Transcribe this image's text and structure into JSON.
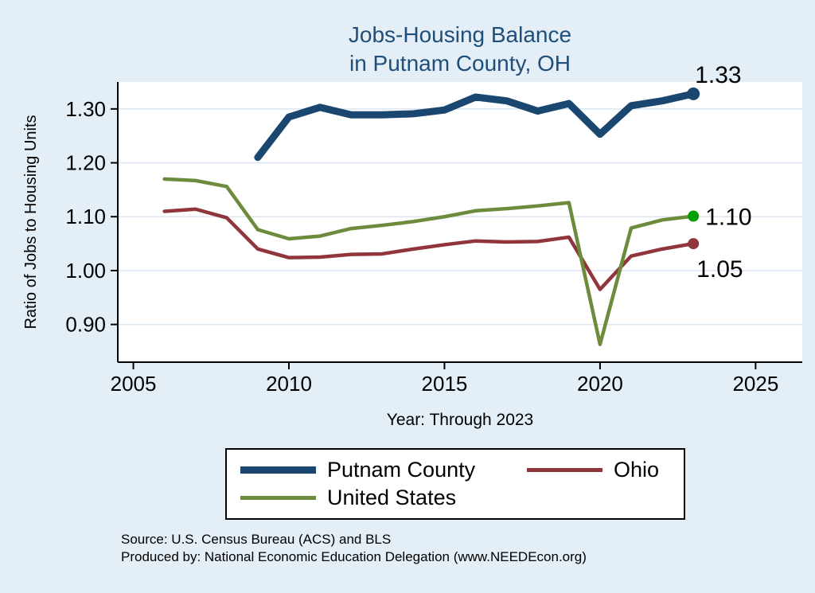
{
  "title_block": {
    "line1": "Jobs-Housing Balance",
    "line2": "in Putnam County, OH"
  },
  "colors": {
    "title": "#1f4e79",
    "background": "#e4eef7",
    "plot_background": "#ffffff",
    "gridline": "#d9e5f0",
    "axis": "#000000",
    "putnam_county": "#1a476f",
    "ohio": "#90353b",
    "united_states": "#6d8b3d",
    "us_end_dot": "#00a000"
  },
  "chart_data": {
    "type": "line",
    "title": "Jobs-Housing Balance in Putnam County, OH",
    "xlabel": "Year: Through 2023",
    "ylabel": "Ratio of Jobs to Housing Units",
    "xlim": [
      2004.5,
      2026.5
    ],
    "ylim": [
      0.83,
      1.35
    ],
    "x_ticks": [
      2005,
      2010,
      2015,
      2020,
      2025
    ],
    "y_ticks": [
      0.9,
      1.0,
      1.1,
      1.2,
      1.3
    ],
    "grid": true,
    "legend_position": "bottom",
    "series": [
      {
        "name": "Putnam County",
        "color": "#1a476f",
        "width": 9,
        "zorder": 3,
        "end_label": "1.33",
        "label_pos": "above",
        "end_dot": true,
        "x": [
          2009,
          2010,
          2011,
          2012,
          2013,
          2014,
          2015,
          2016,
          2017,
          2018,
          2019,
          2020,
          2021,
          2022,
          2023
        ],
        "values": [
          1.21,
          1.285,
          1.303,
          1.289,
          1.289,
          1.291,
          1.298,
          1.322,
          1.315,
          1.296,
          1.31,
          1.253,
          1.306,
          1.315,
          1.328
        ]
      },
      {
        "name": "Ohio",
        "color": "#90353b",
        "width": 4.5,
        "zorder": 1,
        "end_label": "1.05",
        "label_pos": "below",
        "end_dot": true,
        "x": [
          2006,
          2007,
          2008,
          2009,
          2010,
          2011,
          2012,
          2013,
          2014,
          2015,
          2016,
          2017,
          2018,
          2019,
          2020,
          2021,
          2022,
          2023
        ],
        "values": [
          1.11,
          1.114,
          1.098,
          1.04,
          1.024,
          1.025,
          1.03,
          1.031,
          1.04,
          1.048,
          1.055,
          1.053,
          1.054,
          1.062,
          0.965,
          1.027,
          1.04,
          1.05
        ]
      },
      {
        "name": "United States",
        "color": "#6d8b3d",
        "width": 4.5,
        "zorder": 2,
        "end_label": "1.10",
        "label_pos": "right",
        "end_dot": true,
        "end_dot_color": "#00a000",
        "x": [
          2006,
          2007,
          2008,
          2009,
          2010,
          2011,
          2012,
          2013,
          2014,
          2015,
          2016,
          2017,
          2018,
          2019,
          2020,
          2021,
          2022,
          2023
        ],
        "values": [
          1.17,
          1.167,
          1.156,
          1.076,
          1.059,
          1.064,
          1.078,
          1.084,
          1.091,
          1.1,
          1.111,
          1.115,
          1.12,
          1.126,
          0.863,
          1.079,
          1.094,
          1.101
        ]
      }
    ]
  },
  "legend": {
    "items": [
      "Putnam County",
      "Ohio",
      "United States"
    ]
  },
  "footer": {
    "source": "Source: U.S. Census Bureau (ACS) and BLS",
    "produced": "Produced by: National Economic Education Delegation (www.NEEDEcon.org)"
  }
}
